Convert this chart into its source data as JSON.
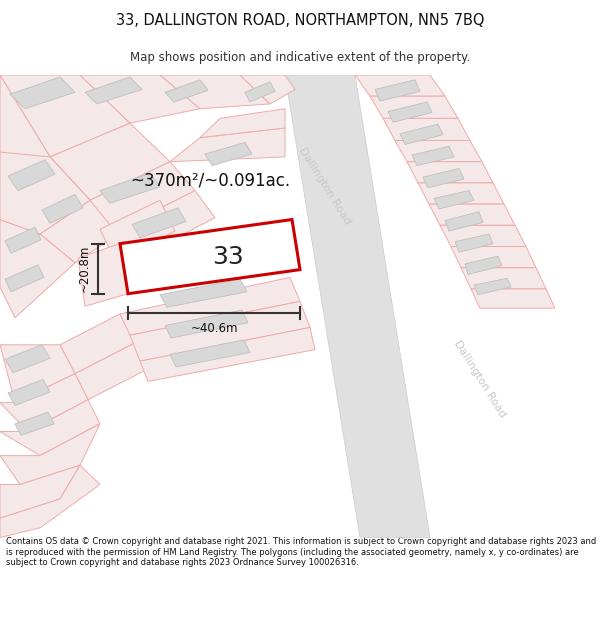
{
  "title": "33, DALLINGTON ROAD, NORTHAMPTON, NN5 7BQ",
  "subtitle": "Map shows position and indicative extent of the property.",
  "footer": "Contains OS data © Crown copyright and database right 2021. This information is subject to Crown copyright and database rights 2023 and is reproduced with the permission of HM Land Registry. The polygons (including the associated geometry, namely x, y co-ordinates) are subject to Crown copyright and database rights 2023 Ordnance Survey 100026316.",
  "map_bg": "#efefef",
  "pink_line": "#f0aaaa",
  "pink_fill": "#f5e8e8",
  "building_fill": "#d8d8d8",
  "building_edge": "#c0c0c0",
  "road_fill": "#e0e0e0",
  "road_edge": "#cccccc",
  "subject_fill": "#ffffff",
  "subject_edge": "#cc0000",
  "road_label1": "Dallington Road",
  "road_label2": "Dallington Road",
  "area_label": "~370m²/~0.091ac.",
  "number_label": "33",
  "width_label": "~40.6m",
  "height_label": "~20.8m"
}
